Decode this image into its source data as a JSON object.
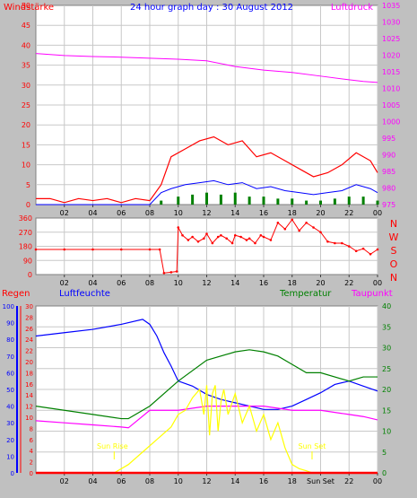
{
  "chart_data": [
    {
      "type": "line",
      "title": "24 hour graph day : 30 August 2012",
      "left_axis_label": "Windstärke",
      "right_axis_label": "Luftdruck",
      "x_ticks": [
        "02",
        "04",
        "06",
        "08",
        "10",
        "12",
        "14",
        "16",
        "18",
        "20",
        "22",
        "00"
      ],
      "left_ticks": [
        "0",
        "5",
        "10",
        "15",
        "20",
        "25",
        "30",
        "35",
        "40",
        "45",
        "50"
      ],
      "right_ticks": [
        "975",
        "980",
        "985",
        "990",
        "995",
        "1000",
        "1005",
        "1010",
        "1015",
        "1020",
        "1025",
        "1030",
        "1035"
      ],
      "x_range": [
        0,
        24
      ],
      "left_range": [
        0,
        50
      ],
      "right_range": [
        975,
        1035
      ],
      "series": [
        {
          "name": "Luftdruck",
          "axis": "right",
          "color": "#ff00ff",
          "x": [
            0,
            1,
            2,
            4,
            6,
            8,
            10,
            12,
            14,
            16,
            18,
            20,
            22,
            23,
            24
          ],
          "y": [
            1020.5,
            1020.2,
            1019.9,
            1019.6,
            1019.4,
            1019.1,
            1018.8,
            1018.3,
            1016.6,
            1015.5,
            1014.8,
            1013.7,
            1012.6,
            1012.1,
            1011.8
          ]
        },
        {
          "name": "",
          "axis": "left",
          "style": "gust",
          "color": "#ff0000",
          "x": [
            0,
            1,
            2,
            3,
            4,
            5,
            6,
            7,
            8,
            8.8,
            9.5,
            10.5,
            11.5,
            12.5,
            13.5,
            14.5,
            15.5,
            16.5,
            17.5,
            18.5,
            19.5,
            20.5,
            21.5,
            22.5,
            23.5,
            24
          ],
          "y": [
            1.5,
            1.5,
            0.5,
            1.5,
            1,
            1.5,
            0.5,
            1.5,
            1,
            5,
            12,
            14,
            16,
            17,
            15,
            16,
            12,
            13,
            11,
            9,
            7,
            8,
            10,
            13,
            11,
            8
          ]
        },
        {
          "name": "",
          "axis": "left",
          "style": "average",
          "color": "#0000ff",
          "x": [
            0,
            8,
            8.8,
            9.5,
            10.5,
            11.5,
            12.5,
            13.5,
            14.5,
            15.5,
            16.5,
            17.5,
            18.5,
            19.5,
            20.5,
            21.5,
            22.5,
            23.5,
            24
          ],
          "y": [
            0,
            0,
            3,
            4,
            5,
            5.5,
            6,
            5,
            5.5,
            4,
            4.5,
            3.5,
            3,
            2.5,
            3,
            3.5,
            5,
            4,
            3
          ]
        },
        {
          "name": "",
          "axis": "left",
          "style": "bars",
          "color": "#008000",
          "x": [
            8.8,
            10,
            11,
            12,
            13,
            14,
            15,
            16,
            17,
            18,
            19,
            20,
            21,
            22,
            23,
            24
          ],
          "y": [
            1,
            2,
            2.5,
            3,
            2.5,
            3,
            2,
            2,
            1.5,
            1.5,
            1,
            1,
            1.5,
            2,
            2,
            1
          ]
        }
      ]
    },
    {
      "type": "scatter",
      "right_axis_labels": [
        "N",
        "W",
        "S",
        "O",
        "N"
      ],
      "y_ticks": [
        "0",
        "90",
        "180",
        "270",
        "360"
      ],
      "x_ticks": [
        "02",
        "04",
        "06",
        "08",
        "10",
        "12",
        "14",
        "16",
        "18",
        "20",
        "22",
        "00"
      ],
      "x_range": [
        0,
        24
      ],
      "y_range": [
        0,
        360
      ],
      "series": [
        {
          "name": "",
          "color": "#ff0000",
          "x": [
            0,
            2,
            4,
            6,
            8,
            8.7,
            9,
            9.5,
            9.9,
            10,
            10.3,
            10.7,
            11,
            11.4,
            11.8,
            12,
            12.4,
            12.8,
            13,
            13.4,
            13.8,
            14,
            14.4,
            14.8,
            15,
            15.4,
            15.8,
            16,
            16.5,
            17,
            17.5,
            18,
            18.5,
            19,
            19.5,
            20,
            20.5,
            21,
            21.5,
            22,
            22.5,
            23,
            23.5,
            24
          ],
          "y": [
            160,
            160,
            160,
            160,
            160,
            160,
            10,
            15,
            20,
            300,
            250,
            220,
            240,
            210,
            230,
            260,
            200,
            240,
            250,
            230,
            200,
            250,
            240,
            220,
            230,
            200,
            250,
            240,
            220,
            330,
            290,
            350,
            280,
            330,
            300,
            270,
            210,
            200,
            200,
            180,
            150,
            165,
            130,
            160
          ]
        }
      ]
    },
    {
      "type": "line",
      "labels": {
        "regen": "Regen",
        "luftfeuchte": "Luftfeuchte",
        "temperatur": "Temperatur",
        "taupunkt": "Taupunkt"
      },
      "axis_regen_ticks": [
        "0",
        "10",
        "20",
        "30",
        "40",
        "50",
        "60",
        "70",
        "80",
        "90",
        "100"
      ],
      "axis_luftfeuchte_ticks": [
        "0",
        "2",
        "4",
        "6",
        "8",
        "10",
        "12",
        "14",
        "16",
        "18",
        "20",
        "22",
        "24",
        "26",
        "28",
        "30"
      ],
      "axis_temp_ticks": [
        "0",
        "5",
        "10",
        "15",
        "20",
        "25",
        "30",
        "35",
        "40"
      ],
      "x_ticks": [
        "02",
        "04",
        "06",
        "08",
        "10",
        "12",
        "14",
        "16",
        "18",
        "Sun Set",
        "22",
        "00"
      ],
      "x_range": [
        0,
        24
      ],
      "annotations": {
        "sun_rise": "Sun Rise",
        "sun_set": "Sun Set"
      },
      "sun_rise_x": 5.5,
      "sun_set_x": 19.4,
      "series": [
        {
          "name": "Luftfeuchte",
          "axis": "regen",
          "color": "#0000ff",
          "x": [
            0,
            2,
            4,
            6,
            7.5,
            8,
            8.5,
            9,
            9.5,
            10,
            11,
            12,
            13,
            14,
            15,
            16,
            17,
            18,
            19,
            20,
            21,
            22,
            23,
            24
          ],
          "y": [
            82,
            84,
            86,
            89,
            92,
            89,
            82,
            72,
            64,
            55,
            52,
            47,
            44,
            42,
            40,
            38,
            38,
            40,
            44,
            48,
            53,
            55,
            52,
            49
          ]
        },
        {
          "name": "Temperatur",
          "axis": "temp",
          "color": "#008000",
          "x": [
            0,
            2,
            4,
            6,
            6.5,
            8,
            10,
            12,
            14,
            15,
            16,
            17,
            18,
            19,
            20,
            22,
            23,
            24
          ],
          "y": [
            16,
            15,
            14,
            13,
            13,
            16,
            22,
            27,
            29,
            29.5,
            29,
            28,
            26,
            24,
            24,
            22,
            23,
            23
          ]
        },
        {
          "name": "Taupunkt",
          "axis": "temp",
          "color": "#ff00ff",
          "x": [
            0,
            2,
            4,
            6,
            6.5,
            8,
            10,
            12,
            14,
            16,
            18,
            20,
            22,
            23,
            24
          ],
          "y": [
            12.5,
            12,
            11.5,
            11,
            10.8,
            15,
            15,
            16,
            16,
            16,
            15,
            15,
            14,
            13.5,
            12.7
          ]
        },
        {
          "name": "",
          "axis": "temp",
          "color": "#ffff00",
          "x": [
            5.5,
            6.5,
            7.5,
            8.5,
            9.5,
            10,
            10.5,
            11,
            11.5,
            11.8,
            12,
            12.2,
            12.4,
            12.6,
            12.8,
            13,
            13.2,
            13.5,
            14,
            14.5,
            15,
            15.5,
            16,
            16.5,
            17,
            17.5,
            18,
            18.5,
            19,
            19.4
          ],
          "y": [
            0,
            2,
            5,
            8,
            11,
            14,
            15,
            18,
            20,
            14,
            21,
            9,
            19,
            21,
            10,
            17,
            20,
            14,
            19,
            12,
            16,
            10,
            14,
            8,
            12,
            6,
            2,
            1,
            0.5,
            0
          ]
        },
        {
          "name": "Regen",
          "axis": "regen",
          "color": "#ff0000",
          "x": [
            0,
            24
          ],
          "y": [
            0,
            0
          ]
        }
      ]
    }
  ]
}
